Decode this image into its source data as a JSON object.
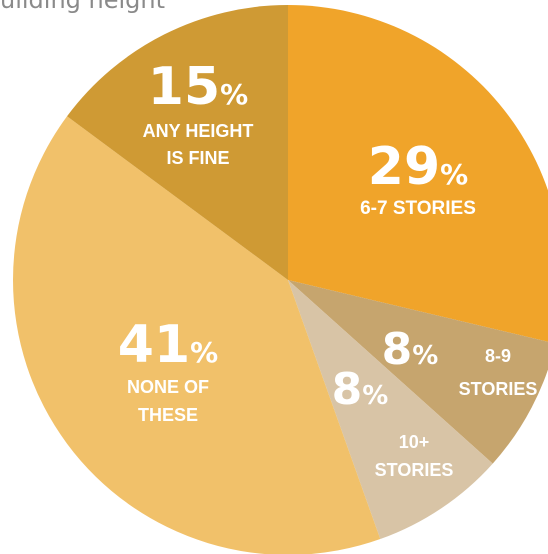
{
  "header": {
    "partial_text": "uilding height"
  },
  "chart_data": {
    "type": "pie",
    "slices": [
      {
        "label_lines": [
          "6-7 STORIES"
        ],
        "value": 29,
        "color": "#f0a42a"
      },
      {
        "label_lines": [
          "8-9",
          "STORIES"
        ],
        "value": 8,
        "color": "#c6a56e"
      },
      {
        "label_lines": [
          "10+",
          "STORIES"
        ],
        "value": 8,
        "color": "#d8c4a6"
      },
      {
        "label_lines": [
          "NONE OF",
          "THESE"
        ],
        "value": 41,
        "color": "#f1c16a"
      },
      {
        "label_lines": [
          "ANY HEIGHT",
          "IS FINE"
        ],
        "value": 15,
        "color": "#cf9a34"
      }
    ],
    "start_angle_deg": 0,
    "direction": "clockwise",
    "value_suffix": "%"
  }
}
